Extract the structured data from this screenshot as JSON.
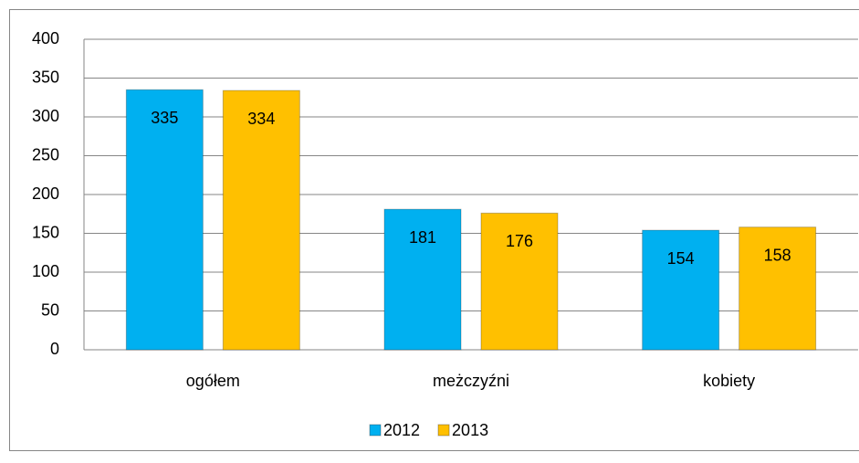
{
  "chart_data": {
    "type": "bar",
    "categories": [
      "ogółem",
      "meżczyźni",
      "kobiety"
    ],
    "series": [
      {
        "name": "2012",
        "color": "#00b0f0",
        "values": [
          335,
          181,
          154
        ]
      },
      {
        "name": "2013",
        "color": "#ffc000",
        "values": [
          334,
          176,
          158
        ]
      }
    ],
    "ylim": [
      0,
      400
    ],
    "yticks": [
      0,
      50,
      100,
      150,
      200,
      250,
      300,
      350,
      400
    ],
    "grid": true,
    "legend": "bottom"
  }
}
